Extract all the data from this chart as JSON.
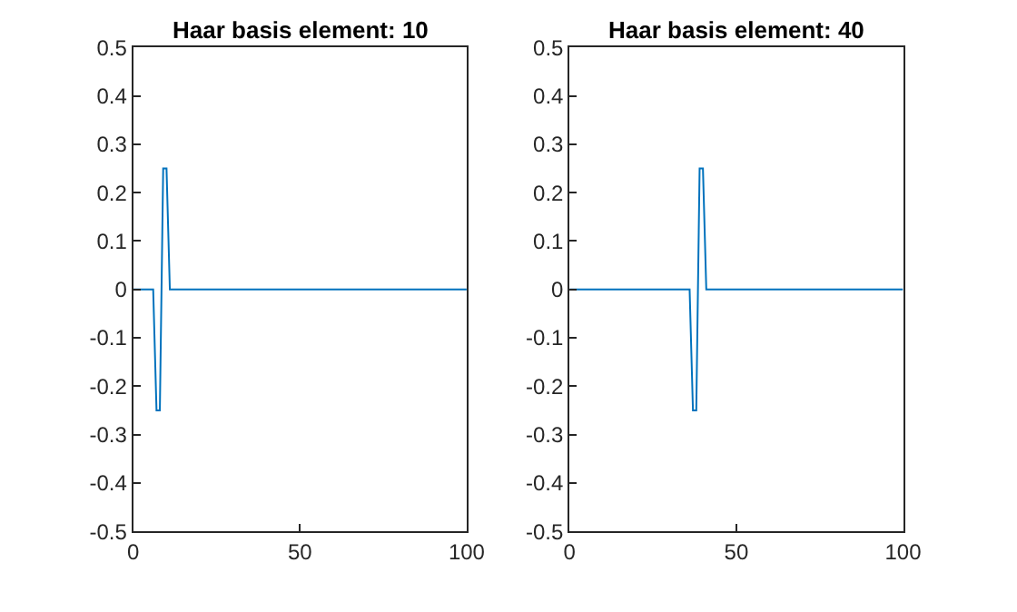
{
  "chart_data": [
    {
      "type": "line",
      "title": "Haar basis element: 10",
      "series": [
        {
          "color": "#0072bd",
          "x": [
            0,
            6,
            7,
            8,
            9,
            10,
            11,
            100
          ],
          "values": [
            0,
            0,
            -0.25,
            -0.25,
            0.25,
            0.25,
            0,
            0
          ]
        }
      ],
      "xlim": [
        0,
        100
      ],
      "xticks": [
        0,
        50,
        100
      ],
      "ylim": [
        -0.5,
        0.5
      ],
      "yticks": [
        -0.5,
        -0.4,
        -0.3,
        -0.2,
        -0.1,
        0,
        0.1,
        0.2,
        0.3,
        0.4,
        0.5
      ]
    },
    {
      "type": "line",
      "title": "Haar basis element: 40",
      "series": [
        {
          "color": "#0072bd",
          "x": [
            0,
            36,
            37,
            38,
            39,
            40,
            41,
            100
          ],
          "values": [
            0,
            0,
            -0.25,
            -0.25,
            0.25,
            0.25,
            0,
            0
          ]
        }
      ],
      "xlim": [
        0,
        100
      ],
      "xticks": [
        0,
        50,
        100
      ],
      "ylim": [
        -0.5,
        0.5
      ],
      "yticks": [
        -0.5,
        -0.4,
        -0.3,
        -0.2,
        -0.1,
        0,
        0.1,
        0.2,
        0.3,
        0.4,
        0.5
      ]
    }
  ]
}
